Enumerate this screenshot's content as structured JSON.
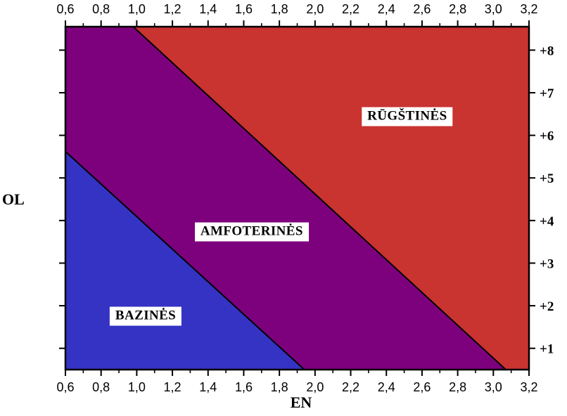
{
  "figure": {
    "background": "#ffffff",
    "axis_color": "#000000",
    "text_color": "#000000",
    "label_box_bg": "#ffffff"
  },
  "chart_data": {
    "type": "area",
    "title": "",
    "xlabel": "EN",
    "ylabel": "OL",
    "x_range": [
      0.6,
      3.2
    ],
    "y_range": [
      0.5,
      8.55
    ],
    "grid": "off",
    "x_ticks": [
      {
        "value": 0.6,
        "label": "0,6"
      },
      {
        "value": 0.8,
        "label": "0,8"
      },
      {
        "value": 1.0,
        "label": "1,0"
      },
      {
        "value": 1.2,
        "label": "1,2"
      },
      {
        "value": 1.4,
        "label": "1,4"
      },
      {
        "value": 1.6,
        "label": "1,6"
      },
      {
        "value": 1.8,
        "label": "1,8"
      },
      {
        "value": 2.0,
        "label": "2,0"
      },
      {
        "value": 2.2,
        "label": "2,2"
      },
      {
        "value": 2.4,
        "label": "2,4"
      },
      {
        "value": 2.6,
        "label": "2,6"
      },
      {
        "value": 2.8,
        "label": "2,8"
      },
      {
        "value": 3.0,
        "label": "3,0"
      },
      {
        "value": 3.2,
        "label": "3,2"
      }
    ],
    "y_ticks": [
      {
        "value": 8,
        "label": "+8"
      },
      {
        "value": 7,
        "label": "+7"
      },
      {
        "value": 6,
        "label": "+6"
      },
      {
        "value": 5,
        "label": "+5"
      },
      {
        "value": 4,
        "label": "+4"
      },
      {
        "value": 3,
        "label": "+3"
      },
      {
        "value": 2,
        "label": "+2"
      },
      {
        "value": 1,
        "label": "+1"
      }
    ],
    "regions": [
      {
        "label": "BAZINĖS",
        "color": "#3533C4",
        "polygon": [
          [
            0.6,
            5.62
          ],
          [
            1.94,
            0.5
          ],
          [
            0.6,
            0.5
          ]
        ],
        "label_anchor": [
          1.05,
          1.75
        ]
      },
      {
        "label": "AMFOTERINĖS",
        "color": "#7D017D",
        "polygon": [
          [
            0.6,
            8.55
          ],
          [
            0.98,
            8.55
          ],
          [
            3.07,
            0.5
          ],
          [
            1.94,
            0.5
          ],
          [
            0.6,
            5.62
          ]
        ],
        "label_anchor": [
          1.645,
          3.73
        ]
      },
      {
        "label": "RŪGŠTINĖS",
        "color": "#C93330",
        "polygon": [
          [
            0.98,
            8.55
          ],
          [
            3.2,
            8.55
          ],
          [
            3.2,
            0.5
          ],
          [
            3.07,
            0.5
          ]
        ],
        "label_anchor": [
          2.517,
          6.44
        ]
      }
    ],
    "boundary_lines": [
      {
        "from": [
          0.6,
          5.62
        ],
        "to": [
          1.94,
          0.5
        ]
      },
      {
        "from": [
          0.98,
          8.55
        ],
        "to": [
          3.07,
          0.5
        ]
      }
    ]
  }
}
